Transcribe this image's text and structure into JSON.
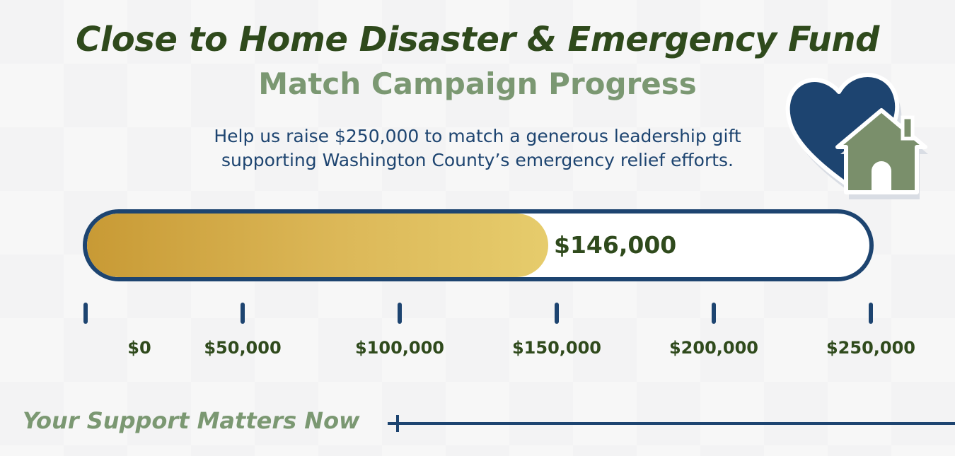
{
  "header": {
    "title": "Close to Home Disaster & Emergency Fund",
    "subtitle": "Match Campaign Progress",
    "description_line1": "Help us raise $250,000 to match a generous leadership gift",
    "description_line2": "supporting Washington County’s emergency relief efforts."
  },
  "icon": {
    "name": "heart-house-icon",
    "heart_color": "#1d4470",
    "house_color": "#7a8f6b"
  },
  "progress": {
    "raised": 146000,
    "goal": 250000,
    "raised_label": "$146,000",
    "fill_color_start": "#c89a35",
    "fill_color_end": "#e6cc6c",
    "border_color": "#1d4470"
  },
  "scale": {
    "ticks": [
      {
        "value": 0,
        "label": "$0"
      },
      {
        "value": 50000,
        "label": "$50,000"
      },
      {
        "value": 100000,
        "label": "$100,000"
      },
      {
        "value": 150000,
        "label": "$150,000"
      },
      {
        "value": 200000,
        "label": "$200,000"
      },
      {
        "value": 250000,
        "label": "$250,000"
      }
    ]
  },
  "footer": {
    "tagline": "Your Support Matters Now"
  },
  "colors": {
    "title": "#2f4a1c",
    "subtitle": "#7b9872",
    "text": "#1d4470",
    "background": "#f3f3f4"
  }
}
